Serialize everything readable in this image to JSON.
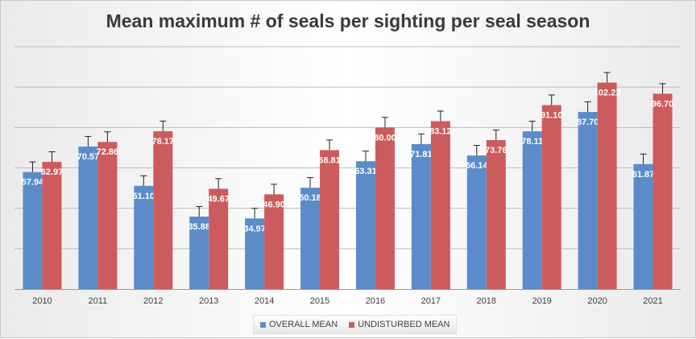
{
  "chart_data": {
    "type": "bar",
    "title": "Mean maximum # of seals per sighting per seal season",
    "categories": [
      "2010",
      "2011",
      "2012",
      "2013",
      "2014",
      "2015",
      "2016",
      "2017",
      "2018",
      "2019",
      "2020",
      "2021"
    ],
    "series": [
      {
        "name": "OVERALL MEAN",
        "color": "#5b8cc9",
        "values": [
          57.94,
          70.57,
          51.1,
          35.88,
          34.97,
          50.18,
          63.31,
          71.81,
          66.14,
          78.11,
          87.7,
          61.87
        ],
        "labels": [
          "57.94",
          "70.57",
          "51.10",
          "35.88",
          "34.97",
          "50.18",
          "63.31",
          "71.81",
          "66.14",
          "78.11",
          "87.70",
          "61.87"
        ],
        "errors": [
          5,
          5,
          5,
          5,
          5,
          5,
          5,
          5,
          5,
          5,
          5,
          5
        ]
      },
      {
        "name": "UNDISTURBED MEAN",
        "color": "#cc5b5d",
        "values": [
          62.97,
          72.86,
          78.17,
          49.67,
          46.9,
          68.81,
          80.0,
          83.12,
          73.76,
          91.1,
          102.22,
          96.7
        ],
        "labels": [
          "62.97",
          "72.86",
          "78.17",
          "49.67",
          "46.90",
          "68.81",
          "80.00",
          "83.12",
          "73.76",
          "91.10",
          "102.22",
          "96.70"
        ],
        "errors": [
          5,
          5,
          5,
          5,
          5,
          5,
          5,
          5,
          5,
          5,
          5,
          5
        ]
      }
    ],
    "ylim": [
      0,
      120
    ],
    "y_gridline_step": 20,
    "y_tick_labels_shown": false,
    "grid": true,
    "legend_position": "bottom"
  }
}
